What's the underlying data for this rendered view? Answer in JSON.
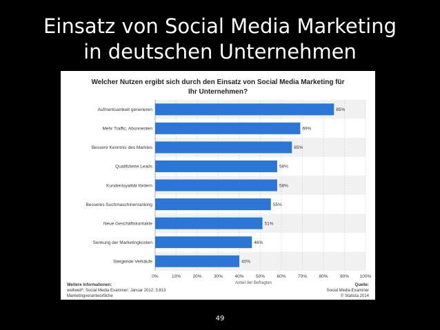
{
  "slide": {
    "title_line1": "Einsatz von Social Media Marketing",
    "title_line2": "in deutschen Unternehmen",
    "page_number": "49"
  },
  "chart_data": {
    "type": "bar",
    "orientation": "horizontal",
    "title_line1": "Welcher Nutzen ergibt sich durch den Einsatz von Social Media Marketing für",
    "title_line2": "Ihr Unternehmen?",
    "categories": [
      "Aufmerksamkeit generieren",
      "Mehr Traffic, Abonnenten",
      "Bessere Kenntnis des Marktes",
      "Qualifizierte Leads",
      "Kundenloyalität fördern",
      "Besseres Suchmaschinenranking",
      "Neue Geschäftskontakte",
      "Senkung der Marketingkosten",
      "Steigende Verkäufe"
    ],
    "values": [
      85,
      69,
      65,
      58,
      58,
      55,
      51,
      46,
      40
    ],
    "value_labels": [
      "85%",
      "69%",
      "65%",
      "58%",
      "58%",
      "55%",
      "51%",
      "46%",
      "40%"
    ],
    "xlim": [
      0,
      100
    ],
    "x_ticks": [
      "0%",
      "10%",
      "20%",
      "30%",
      "40%",
      "50%",
      "60%",
      "70%",
      "80%",
      "90%",
      "100%"
    ],
    "xlabel": "Anteil der Befragten",
    "ylabel": "",
    "grid": true,
    "bar_color": "#2b76d6"
  },
  "footer": {
    "info_heading": "Weitere Informationen:",
    "info_line1": "weltweit*; Social Media Examiner; Januar 2012; 3.813",
    "info_line2": "Marketingverantwortliche",
    "source_heading": "Quelle:",
    "source_line1": "Social Media Examiner",
    "source_line2": "© Statista 2014"
  }
}
